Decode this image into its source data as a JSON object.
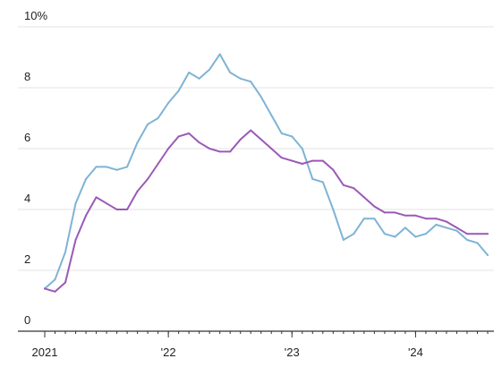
{
  "chart_data": {
    "type": "line",
    "title": "",
    "xlabel": "",
    "ylabel": "",
    "unit": "%",
    "ylim": [
      0,
      10
    ],
    "yticks": [
      {
        "value": 0,
        "label": "0"
      },
      {
        "value": 2,
        "label": "2"
      },
      {
        "value": 4,
        "label": "4"
      },
      {
        "value": 6,
        "label": "6"
      },
      {
        "value": 8,
        "label": "8"
      },
      {
        "value": 10,
        "label": "10%"
      }
    ],
    "xticks": [
      {
        "value": 0,
        "label": "2021"
      },
      {
        "value": 12,
        "label": "'22"
      },
      {
        "value": 24,
        "label": "'23"
      },
      {
        "value": 36,
        "label": "'24"
      }
    ],
    "x_start": "2021-01",
    "x_end": "2024-08",
    "x_unit": "month",
    "grid": true,
    "legend": "none",
    "series": [
      {
        "color": "#7fb3d5",
        "values": [
          1.4,
          1.7,
          2.6,
          4.2,
          5.0,
          5.4,
          5.4,
          5.3,
          5.4,
          6.2,
          6.8,
          7.0,
          7.5,
          7.9,
          8.5,
          8.3,
          8.6,
          9.1,
          8.5,
          8.3,
          8.2,
          7.7,
          7.1,
          6.5,
          6.4,
          6.0,
          5.0,
          4.9,
          4.0,
          3.0,
          3.2,
          3.7,
          3.7,
          3.2,
          3.1,
          3.4,
          3.1,
          3.2,
          3.5,
          3.4,
          3.3,
          3.0,
          2.9,
          2.5
        ]
      },
      {
        "color": "#9b59b6",
        "values": [
          1.4,
          1.3,
          1.6,
          3.0,
          3.8,
          4.4,
          4.2,
          4.0,
          4.0,
          4.6,
          5.0,
          5.5,
          6.0,
          6.4,
          6.5,
          6.2,
          6.0,
          5.9,
          5.9,
          6.3,
          6.6,
          6.3,
          6.0,
          5.7,
          5.6,
          5.5,
          5.6,
          5.6,
          5.3,
          4.8,
          4.7,
          4.4,
          4.1,
          3.9,
          3.9,
          3.8,
          3.8,
          3.7,
          3.7,
          3.6,
          3.4,
          3.2,
          3.2,
          3.2
        ]
      }
    ]
  }
}
